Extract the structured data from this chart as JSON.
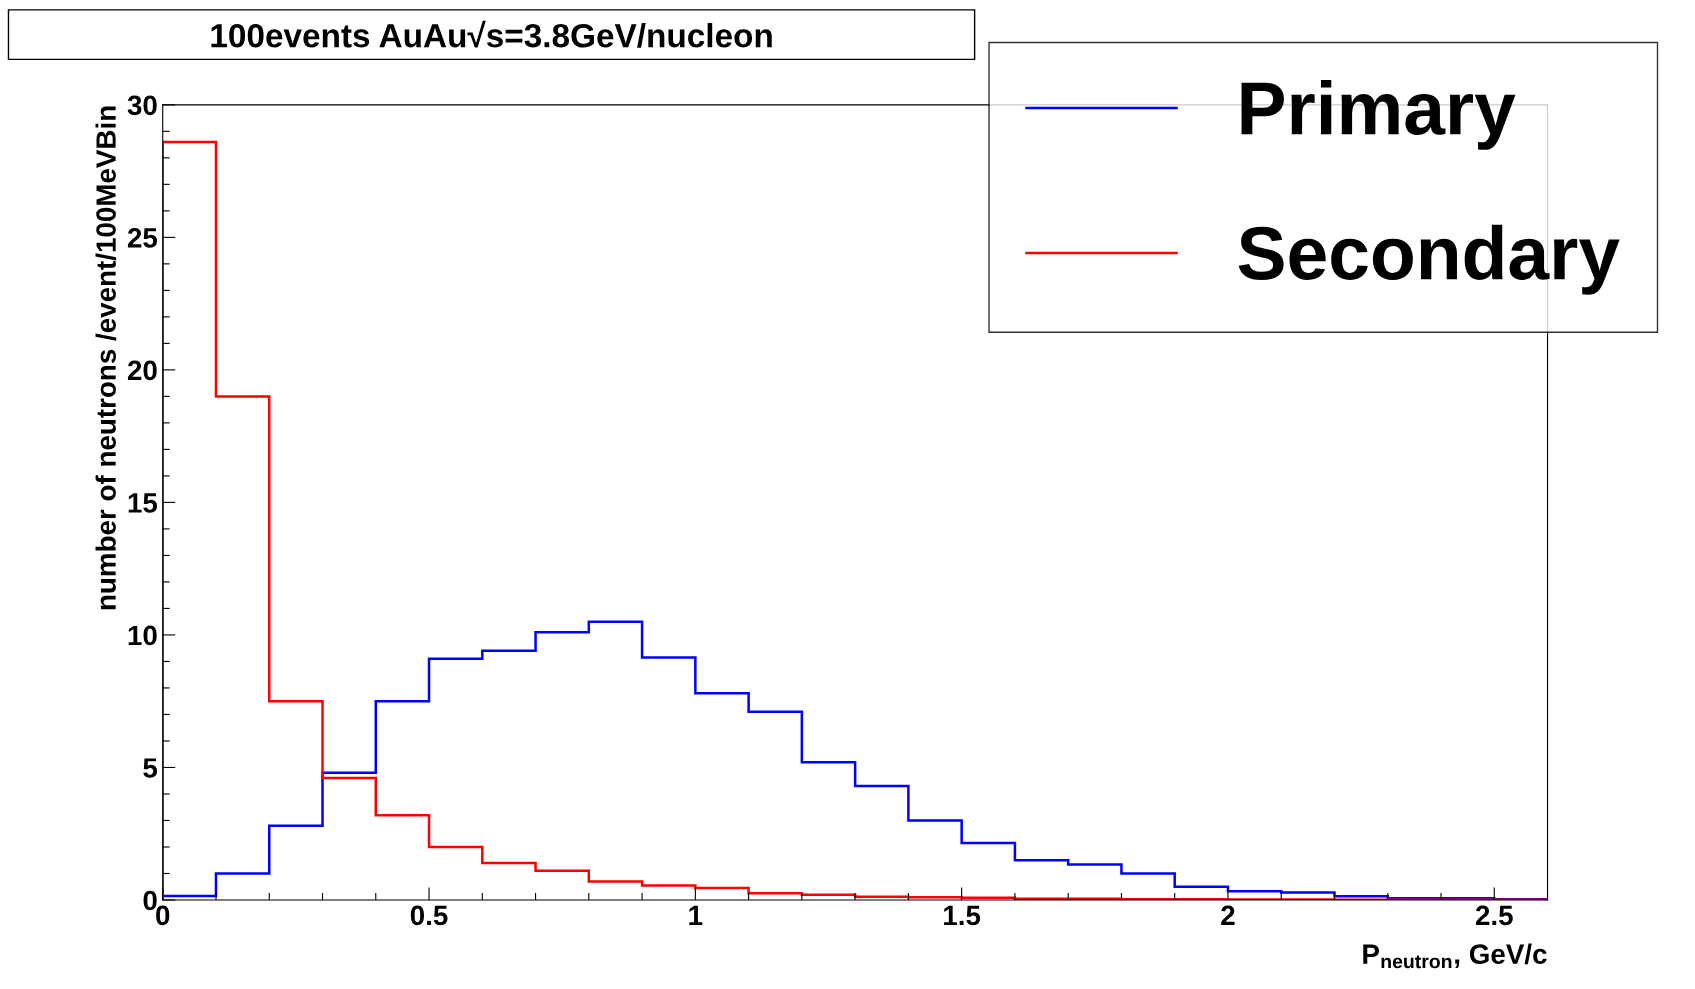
{
  "chart_data": {
    "type": "histogram",
    "title": "100events AuAu√s=3.8GeV/nucleon",
    "xlabel": "P$_{neutron}$, GeV/c",
    "ylabel": "number of neutrons /event/100MeVBin",
    "bins": [
      0,
      0.1,
      0.2,
      0.3,
      0.4,
      0.5,
      0.6,
      0.7,
      0.8,
      0.9,
      1.0,
      1.1,
      1.2,
      1.3,
      1.4,
      1.5,
      1.6,
      1.7,
      1.8,
      1.9,
      2.0,
      2.1,
      2.2,
      2.3,
      2.4,
      2.5,
      2.6
    ],
    "series": [
      {
        "name": "Primary",
        "color": "#0000ff",
        "values": [
          0.15,
          1.0,
          2.8,
          4.8,
          7.5,
          9.1,
          9.4,
          10.1,
          10.5,
          9.15,
          7.8,
          7.1,
          5.2,
          4.3,
          3.0,
          2.15,
          1.5,
          1.34,
          1.0,
          0.5,
          0.33,
          0.28,
          0.14,
          0.07,
          0.07,
          0.03
        ]
      },
      {
        "name": "Secondary",
        "color": "#ff0000",
        "values": [
          28.6,
          19.0,
          7.5,
          4.6,
          3.2,
          2.0,
          1.4,
          1.1,
          0.7,
          0.55,
          0.45,
          0.25,
          0.2,
          0.12,
          0.1,
          0.08,
          0.05,
          0.05,
          0.03,
          0.03,
          0.02,
          0.02,
          0.01,
          0.01,
          0.01,
          0.01
        ]
      }
    ],
    "xlim": [
      0,
      2.6
    ],
    "ylim": [
      0,
      30
    ],
    "xticks": [
      0,
      {
        "value": 0.1,
        "label": null
      },
      {
        "value": 0.2,
        "label": null
      },
      {
        "value": 0.3,
        "label": null
      },
      {
        "value": 0.4,
        "label": null
      },
      0.5,
      {
        "value": 0.6,
        "label": null
      },
      {
        "value": 0.7,
        "label": null
      },
      {
        "value": 0.8,
        "label": null
      },
      {
        "value": 0.9,
        "label": null
      },
      1,
      {
        "value": 1.1,
        "label": null
      },
      {
        "value": 1.2,
        "label": null
      },
      {
        "value": 1.3,
        "label": null
      },
      {
        "value": 1.4,
        "label": null
      },
      1.5,
      {
        "value": 1.6,
        "label": null
      },
      {
        "value": 1.7,
        "label": null
      },
      {
        "value": 1.8,
        "label": null
      },
      {
        "value": 1.9,
        "label": null
      },
      2,
      {
        "value": 2.1,
        "label": null
      },
      {
        "value": 2.2,
        "label": null
      },
      {
        "value": 2.3,
        "label": null
      },
      {
        "value": 2.4,
        "label": null
      },
      2.5
    ],
    "yticks": [
      0,
      {
        "value": 1,
        "label": null
      },
      {
        "value": 2,
        "label": null
      },
      {
        "value": 3,
        "label": null
      },
      {
        "value": 4,
        "label": null
      },
      5,
      {
        "value": 6,
        "label": null
      },
      {
        "value": 7,
        "label": null
      },
      {
        "value": 8,
        "label": null
      },
      {
        "value": 9,
        "label": null
      },
      10,
      {
        "value": 11,
        "label": null
      },
      {
        "value": 12,
        "label": null
      },
      {
        "value": 13,
        "label": null
      },
      {
        "value": 14,
        "label": null
      },
      15,
      {
        "value": 16,
        "label": null
      },
      {
        "value": 17,
        "label": null
      },
      {
        "value": 18,
        "label": null
      },
      {
        "value": 19,
        "label": null
      },
      20,
      {
        "value": 21,
        "label": null
      },
      {
        "value": 22,
        "label": null
      },
      {
        "value": 23,
        "label": null
      },
      {
        "value": 24,
        "label": null
      },
      25,
      {
        "value": 26,
        "label": null
      },
      {
        "value": 27,
        "label": null
      },
      {
        "value": 28,
        "label": null
      },
      {
        "value": 29,
        "label": null
      },
      30
    ],
    "grid": false,
    "legend": "top right"
  }
}
